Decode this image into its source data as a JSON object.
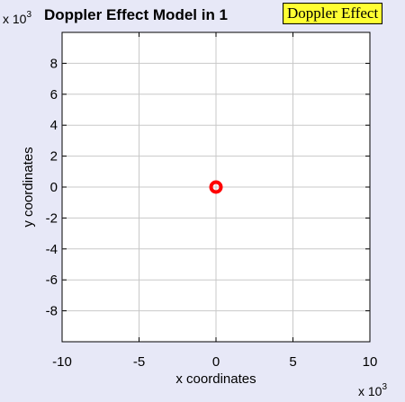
{
  "chart_data": {
    "type": "scatter",
    "title": "Doppler Effect Model in 1",
    "xlabel": "x coordinates",
    "ylabel": "y coordinates",
    "x_multiplier": "x 10",
    "x_multiplier_exp": "3",
    "y_multiplier": "x 10",
    "y_multiplier_exp": "3",
    "xlim": [
      -10,
      10
    ],
    "ylim": [
      -10,
      10
    ],
    "x_ticks": [
      -10,
      -5,
      0,
      5,
      10
    ],
    "y_ticks": [
      -8,
      -6,
      -4,
      -2,
      0,
      2,
      4,
      6,
      8
    ],
    "grid": true,
    "points": [
      {
        "x": 0,
        "y": 0
      }
    ],
    "marker_color": "#ff0000"
  },
  "tooltip": {
    "text": "Doppler Effect"
  },
  "colors": {
    "background": "#e7e8f7",
    "plot_area": "#ffffff",
    "grid": "#c8c8c8",
    "tooltip_bg": "#ffff33"
  }
}
